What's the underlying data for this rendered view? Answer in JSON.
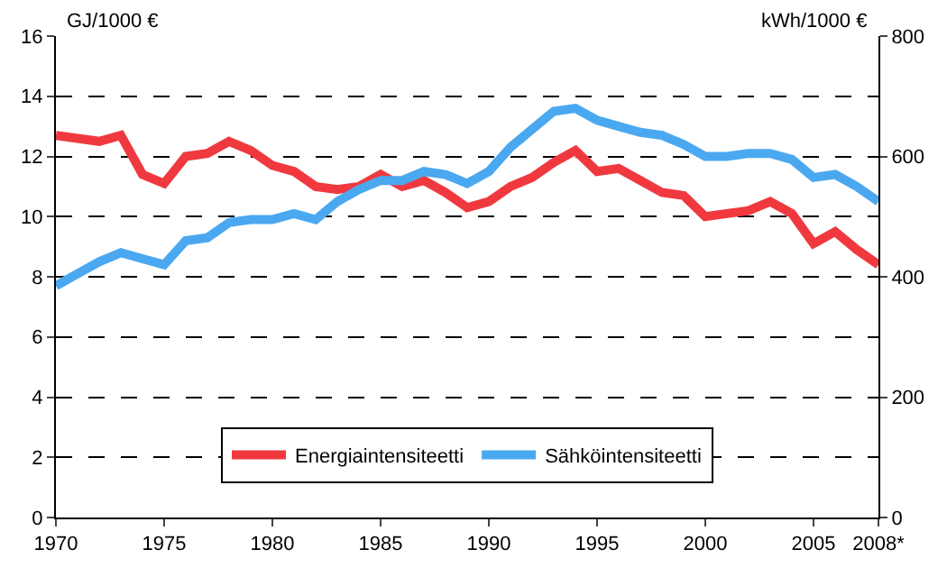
{
  "chart_data": {
    "type": "line",
    "ylabel": "GJ/1000 €",
    "y2label": "kWh/1000 €",
    "x": [
      1970,
      1971,
      1972,
      1973,
      1974,
      1975,
      1976,
      1977,
      1978,
      1979,
      1980,
      1981,
      1982,
      1983,
      1984,
      1985,
      1986,
      1987,
      1988,
      1989,
      1990,
      1991,
      1992,
      1993,
      1994,
      1995,
      1996,
      1997,
      1998,
      1999,
      2000,
      2001,
      2002,
      2003,
      2004,
      2005,
      2006,
      2007,
      2008
    ],
    "series": [
      {
        "name": "Energiaintensiteetti",
        "color": "#f0393f",
        "values": [
          12.7,
          12.6,
          12.5,
          12.7,
          11.4,
          11.1,
          12.0,
          12.1,
          12.5,
          12.2,
          11.7,
          11.5,
          11.0,
          10.9,
          11.0,
          11.4,
          11.0,
          11.2,
          10.8,
          10.3,
          10.5,
          11.0,
          11.3,
          11.8,
          12.2,
          11.5,
          11.6,
          11.2,
          10.8,
          10.7,
          10.0,
          10.1,
          10.2,
          10.5,
          10.1,
          9.1,
          9.5,
          8.9,
          8.4
        ]
      },
      {
        "name": "Sähköintensiteetti",
        "color": "#4aa8f0",
        "axis": "y2",
        "values": [
          385,
          405,
          425,
          440,
          430,
          420,
          460,
          465,
          490,
          495,
          495,
          505,
          495,
          525,
          545,
          560,
          560,
          575,
          570,
          555,
          575,
          615,
          645,
          675,
          680,
          660,
          650,
          640,
          635,
          620,
          600,
          600,
          605,
          605,
          595,
          565,
          570,
          550,
          525
        ]
      }
    ],
    "xlim": [
      1970,
      2008
    ],
    "xticks": [
      1970,
      1975,
      1980,
      1985,
      1990,
      1995,
      2000,
      2005,
      {
        "value": 2008,
        "label": "2008*"
      }
    ],
    "ylim": [
      0,
      16
    ],
    "yticks": [
      0,
      2,
      4,
      6,
      8,
      10,
      12,
      14,
      16
    ],
    "y2lim": [
      0,
      800
    ],
    "y2ticks": [
      0,
      200,
      400,
      600,
      800
    ],
    "grid": "y",
    "legend": "bottom",
    "marker": "none",
    "line_style": "solid"
  }
}
